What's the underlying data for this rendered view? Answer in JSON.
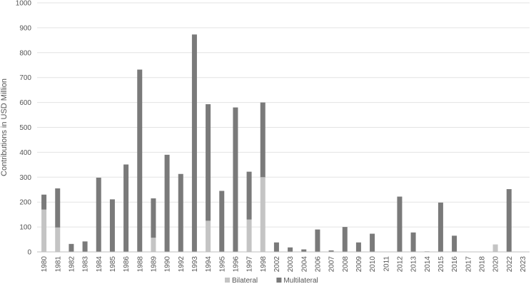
{
  "chart_data": {
    "type": "bar",
    "stacked": true,
    "title": "",
    "xlabel": "",
    "ylabel": "Contributions in USD Million",
    "ylim": [
      0,
      1000
    ],
    "yticks": [
      0,
      100,
      200,
      300,
      400,
      500,
      600,
      700,
      800,
      900,
      1000
    ],
    "grid": true,
    "legend_position": "bottom",
    "categories": [
      "1980",
      "1981",
      "1982",
      "1983",
      "1984",
      "1985",
      "1986",
      "1988",
      "1989",
      "1990",
      "1992",
      "1993",
      "1994",
      "1995",
      "1996",
      "1997",
      "1998",
      "2002",
      "2003",
      "2004",
      "2006",
      "2007",
      "2008",
      "2009",
      "2010",
      "2011",
      "2012",
      "2013",
      "2014",
      "2015",
      "2016",
      "2017",
      "2018",
      "2020",
      "2022",
      "2023"
    ],
    "series": [
      {
        "name": "Bilateral",
        "color": "#c4c4c4",
        "values": [
          170,
          98,
          0,
          0,
          0,
          0,
          0,
          0,
          57,
          0,
          0,
          0,
          125,
          0,
          0,
          130,
          300,
          0,
          0,
          0,
          0,
          0,
          0,
          0,
          0,
          0,
          0,
          0,
          3,
          0,
          0,
          0,
          0,
          30,
          0,
          0
        ]
      },
      {
        "name": "Multilateral",
        "color": "#7a7a7a",
        "values": [
          60,
          157,
          32,
          42,
          298,
          211,
          351,
          732,
          158,
          390,
          313,
          873,
          468,
          245,
          580,
          192,
          300,
          38,
          18,
          10,
          90,
          6,
          100,
          38,
          73,
          0,
          222,
          78,
          0,
          198,
          65,
          0,
          0,
          0,
          252,
          0
        ]
      }
    ]
  }
}
